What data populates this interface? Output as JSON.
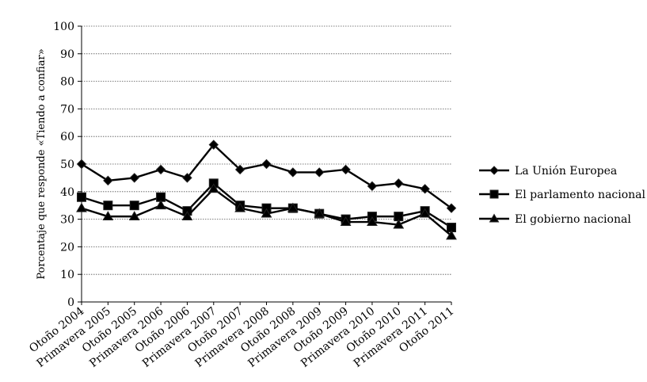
{
  "chart_data": {
    "type": "line",
    "title": "",
    "xlabel": "",
    "ylabel": "Porcentaje que responde «Tiendo a confiar»",
    "ylim": [
      0,
      100
    ],
    "yticks": [
      0,
      10,
      20,
      30,
      40,
      50,
      60,
      70,
      80,
      90,
      100
    ],
    "grid": true,
    "legend_position": "right",
    "categories": [
      "Otoño 2004",
      "Primavera 2005",
      "Otoño 2005",
      "Primavera 2006",
      "Otoño 2006",
      "Primavera 2007",
      "Otoño 2007",
      "Primavera 2008",
      "Otoño 2008",
      "Primavera 2009",
      "Otoño 2009",
      "Primavera 2010",
      "Otoño 2010",
      "Primavera 2011",
      "Otoño 2011"
    ],
    "series": [
      {
        "name": "La Unión Europea",
        "marker": "diamond",
        "values": [
          50,
          44,
          45,
          48,
          45,
          57,
          48,
          50,
          47,
          47,
          48,
          42,
          43,
          41,
          34
        ]
      },
      {
        "name": "El parlamento nacional",
        "marker": "square",
        "values": [
          38,
          35,
          35,
          38,
          33,
          43,
          35,
          34,
          34,
          32,
          30,
          31,
          31,
          33,
          27
        ]
      },
      {
        "name": "El gobierno nacional",
        "marker": "triangle",
        "values": [
          34,
          31,
          31,
          35,
          31,
          41,
          34,
          32,
          34,
          32,
          29,
          29,
          28,
          32,
          24
        ]
      }
    ]
  }
}
